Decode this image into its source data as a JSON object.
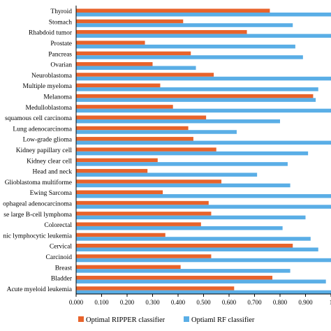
{
  "chart_data": {
    "type": "bar",
    "orientation": "horizontal",
    "categories": [
      "Thyroid",
      "Stomach",
      "Rhabdoid tumor",
      "Prostate",
      "Pancreas",
      "Ovarian",
      "Neuroblastoma",
      "Multiple myeloma",
      "Melanoma",
      "Medulloblastoma",
      "squamous cell carcinoma",
      "Lung adenocarcinoma",
      "Low-grade glioma",
      "Kidney papillary cell",
      "Kidney clear cell",
      "Head and neck",
      "Glioblastoma multiforme",
      "Ewing Sarcoma",
      "ophageal adenocarcinoma",
      "se large B-cell lymphoma",
      "Colorectal",
      "nic lymphocytic leukemia",
      "Cervical",
      "Carcinoid",
      "Breast",
      "Bladder",
      "Acute myeloid leukemia"
    ],
    "series": [
      {
        "name": "Optimal RIPPER classifier",
        "color": "#e8632b",
        "values": [
          0.76,
          0.42,
          0.67,
          0.27,
          0.45,
          0.3,
          0.54,
          0.33,
          0.93,
          0.38,
          0.51,
          0.44,
          0.46,
          0.55,
          0.32,
          0.28,
          0.57,
          0.34,
          0.52,
          0.53,
          0.49,
          0.35,
          0.85,
          0.53,
          0.41,
          0.77,
          0.62
        ]
      },
      {
        "name": "Optiaml RF classifier",
        "color": "#5aaee6",
        "values": [
          1.0,
          0.85,
          1.0,
          0.86,
          0.89,
          0.47,
          1.0,
          0.95,
          0.94,
          1.0,
          0.8,
          0.63,
          1.0,
          0.91,
          0.83,
          0.71,
          0.84,
          1.0,
          1.0,
          0.9,
          0.81,
          0.92,
          0.95,
          1.0,
          0.84,
          0.98,
          1.0
        ]
      }
    ],
    "xticks": [
      "0.000",
      "0.100",
      "0.200",
      "0.300",
      "0.400",
      "0.500",
      "0.600",
      "0.700",
      "0.800",
      "0.900",
      "1"
    ],
    "xlim": [
      0,
      1.0
    ],
    "grid": false,
    "legend_position": "bottom"
  }
}
